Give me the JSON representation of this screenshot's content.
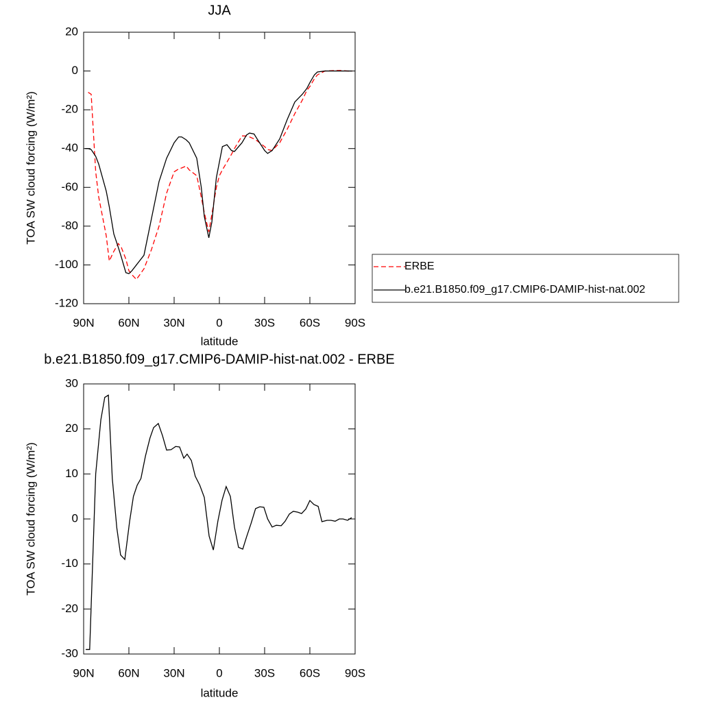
{
  "chart_data": [
    {
      "type": "line",
      "title": "JJA",
      "xlabel": "latitude",
      "ylabel": "TOA SW cloud forcing (W/m²)",
      "x": [
        89,
        87,
        85,
        82,
        80,
        75,
        73,
        70,
        67,
        65,
        62,
        60,
        58,
        55,
        50,
        45,
        40,
        35,
        30,
        27,
        25,
        22,
        20,
        15,
        12,
        10,
        7,
        5,
        2,
        0,
        -2,
        -5,
        -8,
        -10,
        -15,
        -18,
        -20,
        -23,
        -25,
        -30,
        -32,
        -35,
        -40,
        -45,
        -50,
        -55,
        -58,
        -60,
        -63,
        -65,
        -70,
        -75,
        -80,
        -85,
        -88
      ],
      "series": [
        {
          "name": "ERBE",
          "color": "#ff0000",
          "dash": true,
          "values": [
            null,
            -11,
            -12,
            -52,
            -65,
            -85,
            -98,
            -93,
            -89,
            -91,
            -97,
            -103,
            -105,
            -107.5,
            -102,
            -92,
            -80,
            -63,
            -52,
            -50.5,
            -50,
            -49,
            -51,
            -54,
            -65,
            -73,
            -83,
            -74,
            -60,
            -54,
            -51,
            -47,
            -43,
            -40,
            -33.5,
            -33.5,
            -34,
            -35,
            -36,
            -39,
            -40.5,
            -41,
            -37,
            -30,
            -22,
            -15,
            -10,
            -8,
            -4,
            -2,
            0,
            0.2,
            0.3,
            0,
            0
          ]
        },
        {
          "name": "b.e21.B1850.f09_g17.CMIP6-DAMIP-hist-nat.002",
          "color": "#000000",
          "dash": false,
          "values": [
            -40,
            -40,
            -40.5,
            -44,
            -48,
            -62,
            -70,
            -84,
            -91,
            -96,
            -104,
            -104.5,
            -103,
            -100,
            -95,
            -76,
            -57,
            -45,
            -37,
            -34,
            -34,
            -35.5,
            -37,
            -45,
            -60,
            -75,
            -86,
            -78,
            -55,
            -47,
            -39,
            -38,
            -41,
            -41.5,
            -37,
            -33,
            -32,
            -32.5,
            -35,
            -41,
            -42.5,
            -41,
            -35,
            -25,
            -16,
            -12,
            -9,
            -6,
            -2,
            -0.5,
            0,
            0,
            0,
            0,
            0
          ]
        }
      ],
      "xlim": [
        90,
        -90
      ],
      "xticks": [
        {
          "value": 90,
          "label": "90N"
        },
        {
          "value": 60,
          "label": "60N"
        },
        {
          "value": 30,
          "label": "30N"
        },
        0,
        {
          "value": -30,
          "label": "30S"
        },
        {
          "value": -60,
          "label": "60S"
        },
        {
          "value": -90,
          "label": "90S"
        }
      ],
      "ylim": [
        -120,
        20
      ],
      "yticks": [
        -120,
        -100,
        -80,
        -60,
        -40,
        -20,
        0,
        20
      ],
      "legend": "right"
    },
    {
      "type": "line",
      "title": "b.e21.B1850.f09_g17.CMIP6-DAMIP-hist-nat.002 - ERBE",
      "xlabel": "latitude",
      "ylabel": "TOA SW cloud forcing (W/m²)",
      "x": [
        88.6,
        86,
        82,
        78.6,
        76,
        73.6,
        71,
        68,
        65.5,
        62.7,
        59.5,
        57,
        54.5,
        52,
        49,
        46,
        43.6,
        40.5,
        37.7,
        35,
        32,
        29,
        26.4,
        23.6,
        21.4,
        18.6,
        16,
        13,
        10,
        6.8,
        4,
        1,
        -1.8,
        -4.5,
        -7.3,
        -10,
        -12.7,
        -15.5,
        -18,
        -21,
        -24,
        -26.8,
        -29.5,
        -32,
        -35,
        -37.7,
        -41,
        -43.6,
        -46.4,
        -49,
        -52,
        -54.5,
        -57.3,
        -60,
        -62.7,
        -65.5,
        -68,
        -71.4,
        -74,
        -76.8,
        -79.5,
        -82,
        -85,
        -87.7
      ],
      "series": [
        {
          "name": null,
          "color": "#000000",
          "dash": false,
          "values": [
            -29,
            -29,
            10,
            22,
            27,
            27.5,
            9,
            -2,
            -8,
            -9,
            -0.5,
            5,
            7.5,
            9,
            14,
            18,
            20.3,
            21.2,
            18.5,
            15.3,
            15.4,
            16.1,
            16,
            13.5,
            14.4,
            13,
            9.5,
            7.5,
            4.8,
            -3.8,
            -6.9,
            -0.5,
            4.2,
            7.2,
            5,
            -1.8,
            -6.3,
            -6.7,
            -4,
            -1,
            2.3,
            2.7,
            2.6,
            0,
            -1.8,
            -1.4,
            -1.5,
            -0.5,
            1.1,
            1.7,
            1.5,
            1.2,
            2.2,
            4.1,
            3.2,
            2.8,
            -0.6,
            -0.3,
            -0.3,
            -0.5,
            0,
            0,
            -0.3,
            0.3
          ]
        }
      ],
      "xlim": [
        90,
        -90
      ],
      "xticks": [
        {
          "value": 90,
          "label": "90N"
        },
        {
          "value": 60,
          "label": "60N"
        },
        {
          "value": 30,
          "label": "30N"
        },
        0,
        {
          "value": -30,
          "label": "30S"
        },
        {
          "value": -60,
          "label": "60S"
        },
        {
          "value": -90,
          "label": "90S"
        }
      ],
      "ylim": [
        -30,
        30
      ],
      "yticks": [
        -30,
        -20,
        -10,
        0,
        10,
        20,
        30
      ]
    }
  ]
}
